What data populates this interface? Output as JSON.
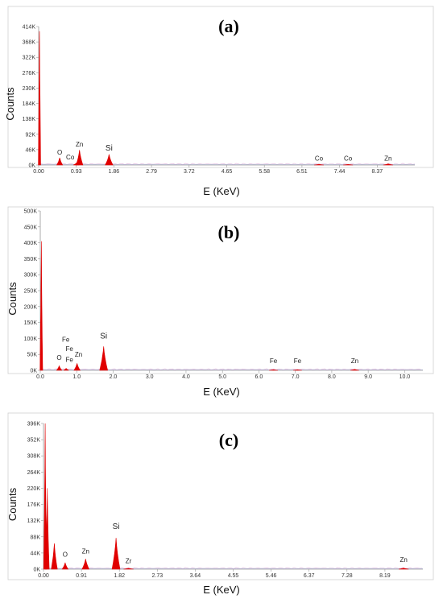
{
  "colors": {
    "peak": "#e00000",
    "axis": "#9a9a9a",
    "panel_border": "#cfcfcf",
    "baseline": "#8fa8d8",
    "noise": "#d889c8"
  },
  "chart_data": [
    {
      "type": "area",
      "label": "(a)",
      "xlabel": "E (KeV)",
      "ylabel": "Counts",
      "xlim": [
        0,
        9.3
      ],
      "ylim": [
        0,
        414000
      ],
      "xticks": [
        0.0,
        0.93,
        1.86,
        2.79,
        3.72,
        4.65,
        5.58,
        6.51,
        7.44,
        8.37
      ],
      "xtick_labels": [
        "0.00",
        "0.93",
        "1.86",
        "2.79",
        "3.72",
        "4.65",
        "5.58",
        "6.51",
        "7.44",
        "8.37"
      ],
      "yticks": [
        0,
        46000,
        92000,
        138000,
        184000,
        230000,
        276000,
        322000,
        368000,
        414000
      ],
      "ytick_labels": [
        "0K",
        "46K",
        "92K",
        "138K",
        "184K",
        "230K",
        "276K",
        "322K",
        "368K",
        "414K"
      ],
      "peaks": [
        {
          "x": 0.02,
          "y": 400000,
          "w": 0.012
        },
        {
          "x": 0.52,
          "y": 22000,
          "w": 0.03
        },
        {
          "x": 0.93,
          "y": 6000,
          "w": 0.03
        },
        {
          "x": 1.01,
          "y": 45000,
          "w": 0.035
        },
        {
          "x": 1.74,
          "y": 32000,
          "w": 0.04
        },
        {
          "x": 6.93,
          "y": 2500,
          "w": 0.05
        },
        {
          "x": 7.65,
          "y": 2000,
          "w": 0.05
        },
        {
          "x": 8.64,
          "y": 3500,
          "w": 0.05
        }
      ],
      "element_labels": [
        {
          "text": "O",
          "x": 0.52,
          "y": 26000
        },
        {
          "text": "Co",
          "x": 0.78,
          "y": 12000
        },
        {
          "text": "Zn",
          "x": 1.01,
          "y": 50000
        },
        {
          "text": "Si",
          "x": 1.74,
          "y": 38000
        },
        {
          "text": "Co",
          "x": 6.93,
          "y": 8000
        },
        {
          "text": "Co",
          "x": 7.65,
          "y": 8000
        },
        {
          "text": "Zn",
          "x": 8.64,
          "y": 9000
        }
      ]
    },
    {
      "type": "area",
      "label": "(b)",
      "xlabel": "E (KeV)",
      "ylabel": "Counts",
      "xlim": [
        0,
        10.5
      ],
      "ylim": [
        0,
        500000
      ],
      "xticks": [
        0.0,
        1.0,
        2.0,
        3.0,
        4.0,
        5.0,
        6.0,
        7.0,
        8.0,
        9.0,
        10.0
      ],
      "xtick_labels": [
        "0.0",
        "1.0",
        "2.0",
        "3.0",
        "4.0",
        "5.0",
        "6.0",
        "7.0",
        "8.0",
        "9.0",
        "10.0"
      ],
      "yticks": [
        0,
        50000,
        100000,
        150000,
        200000,
        250000,
        300000,
        350000,
        400000,
        450000,
        500000
      ],
      "ytick_labels": [
        "0K",
        "50K",
        "100K",
        "150K",
        "200K",
        "250K",
        "300K",
        "350K",
        "400K",
        "450K",
        "500K"
      ],
      "peaks": [
        {
          "x": 0.03,
          "y": 405000,
          "w": 0.015
        },
        {
          "x": 0.52,
          "y": 14000,
          "w": 0.03
        },
        {
          "x": 0.71,
          "y": 6000,
          "w": 0.03
        },
        {
          "x": 1.01,
          "y": 22000,
          "w": 0.035
        },
        {
          "x": 1.74,
          "y": 75000,
          "w": 0.045
        },
        {
          "x": 6.4,
          "y": 2000,
          "w": 0.05
        },
        {
          "x": 7.06,
          "y": 2000,
          "w": 0.05
        },
        {
          "x": 8.63,
          "y": 3000,
          "w": 0.05
        }
      ],
      "element_labels": [
        {
          "text": "Fe",
          "x": 0.7,
          "y": 85000
        },
        {
          "text": "Fe",
          "x": 0.8,
          "y": 55000
        },
        {
          "text": "O",
          "x": 0.52,
          "y": 28000
        },
        {
          "text": "Fe",
          "x": 0.8,
          "y": 22000
        },
        {
          "text": "Zn",
          "x": 1.05,
          "y": 38000
        },
        {
          "text": "Si",
          "x": 1.74,
          "y": 95000
        },
        {
          "text": "Fe",
          "x": 6.4,
          "y": 18000
        },
        {
          "text": "Fe",
          "x": 7.06,
          "y": 18000
        },
        {
          "text": "Zn",
          "x": 8.63,
          "y": 18000
        }
      ]
    },
    {
      "type": "area",
      "label": "(c)",
      "xlabel": "E (KeV)",
      "ylabel": "Counts",
      "xlim": [
        0,
        9.1
      ],
      "ylim": [
        0,
        396000
      ],
      "xticks": [
        0.0,
        0.91,
        1.82,
        2.73,
        3.64,
        4.55,
        5.46,
        6.37,
        7.28,
        8.19
      ],
      "xtick_labels": [
        "0.00",
        "0.91",
        "1.82",
        "2.73",
        "3.64",
        "4.55",
        "5.46",
        "6.37",
        "7.28",
        "8.19"
      ],
      "yticks": [
        0,
        44000,
        88000,
        132000,
        176000,
        220000,
        264000,
        308000,
        352000,
        396000
      ],
      "ytick_labels": [
        "0K",
        "44K",
        "88K",
        "132K",
        "176K",
        "220K",
        "264K",
        "308K",
        "352K",
        "396K"
      ],
      "peaks": [
        {
          "x": 0.04,
          "y": 396000,
          "w": 0.015
        },
        {
          "x": 0.09,
          "y": 220000,
          "w": 0.02
        },
        {
          "x": 0.26,
          "y": 70000,
          "w": 0.03
        },
        {
          "x": 0.52,
          "y": 18000,
          "w": 0.03
        },
        {
          "x": 1.01,
          "y": 28000,
          "w": 0.035
        },
        {
          "x": 1.74,
          "y": 85000,
          "w": 0.04
        },
        {
          "x": 2.04,
          "y": 2500,
          "w": 0.05
        },
        {
          "x": 8.64,
          "y": 3000,
          "w": 0.05
        }
      ],
      "element_labels": [
        {
          "text": "O",
          "x": 0.52,
          "y": 30000
        },
        {
          "text": "Zn",
          "x": 1.01,
          "y": 38000
        },
        {
          "text": "Si",
          "x": 1.74,
          "y": 105000
        },
        {
          "text": "Zr",
          "x": 2.04,
          "y": 12000
        },
        {
          "text": "Zn",
          "x": 8.64,
          "y": 15000
        }
      ]
    }
  ]
}
